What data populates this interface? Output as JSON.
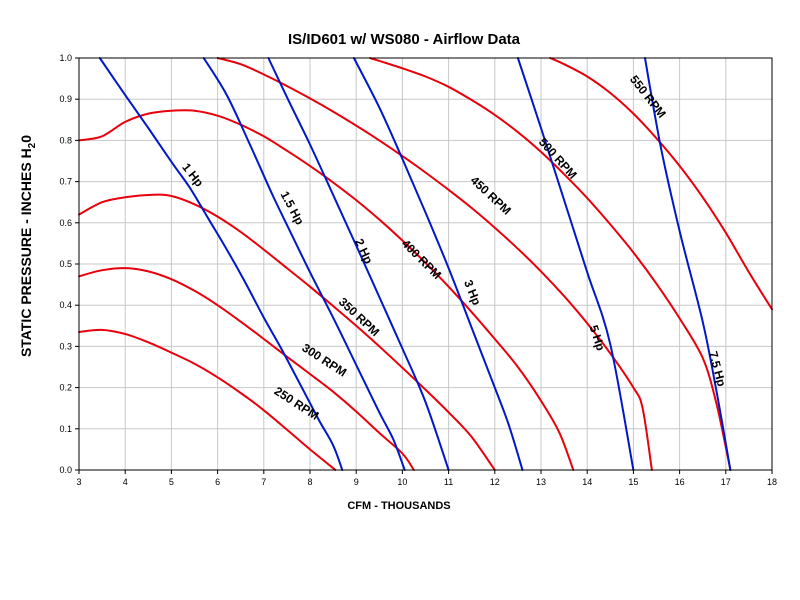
{
  "chart_data": {
    "type": "line",
    "title": "IS/ID601 w/ WS080 - Airflow Data",
    "xlabel": "CFM - THOUSANDS",
    "ylabel": "STATIC PRESSURE - INCHES H",
    "ylabel_sub": "2",
    "ylabel_end": "0",
    "xlim": [
      3,
      18
    ],
    "ylim": [
      0,
      1.0
    ],
    "x_ticks": [
      "3",
      "4",
      "5",
      "6",
      "7",
      "8",
      "9",
      "10",
      "11",
      "12",
      "13",
      "14",
      "15",
      "16",
      "17",
      "18"
    ],
    "y_ticks": [
      "0.0",
      "0.1",
      "0.2",
      "0.3",
      "0.4",
      "0.5",
      "0.6",
      "0.7",
      "0.8",
      "0.9",
      "1.0"
    ],
    "grid": true,
    "colors": {
      "rpm": "#e8000b",
      "hp": "#0018c8",
      "grid": "#c8c8c8",
      "axis": "#000000"
    },
    "rpm_series": [
      {
        "name": "250 RPM",
        "label_at": [
          7.7,
          0.16
        ],
        "label_angle": 33,
        "points": [
          [
            3.0,
            0.335
          ],
          [
            3.5,
            0.34
          ],
          [
            4.0,
            0.33
          ],
          [
            4.5,
            0.31
          ],
          [
            5.0,
            0.285
          ],
          [
            5.5,
            0.258
          ],
          [
            6.0,
            0.225
          ],
          [
            6.5,
            0.187
          ],
          [
            7.0,
            0.145
          ],
          [
            7.5,
            0.098
          ],
          [
            8.0,
            0.05
          ],
          [
            8.55,
            0.0
          ]
        ]
      },
      {
        "name": "300 RPM",
        "label_at": [
          8.3,
          0.265
        ],
        "label_angle": 33,
        "points": [
          [
            3.0,
            0.47
          ],
          [
            3.5,
            0.485
          ],
          [
            4.0,
            0.49
          ],
          [
            4.5,
            0.482
          ],
          [
            5.0,
            0.463
          ],
          [
            5.5,
            0.435
          ],
          [
            6.0,
            0.4
          ],
          [
            6.5,
            0.36
          ],
          [
            7.0,
            0.318
          ],
          [
            7.5,
            0.275
          ],
          [
            8.0,
            0.233
          ],
          [
            8.5,
            0.19
          ],
          [
            9.0,
            0.142
          ],
          [
            9.5,
            0.09
          ],
          [
            10.0,
            0.04
          ],
          [
            10.25,
            0.0
          ]
        ]
      },
      {
        "name": "350 RPM",
        "label_at": [
          9.05,
          0.37
        ],
        "label_angle": 43,
        "points": [
          [
            3.0,
            0.62
          ],
          [
            3.5,
            0.65
          ],
          [
            4.0,
            0.662
          ],
          [
            4.6,
            0.668
          ],
          [
            5.0,
            0.665
          ],
          [
            5.5,
            0.645
          ],
          [
            6.0,
            0.615
          ],
          [
            6.5,
            0.578
          ],
          [
            7.0,
            0.535
          ],
          [
            7.5,
            0.49
          ],
          [
            8.0,
            0.445
          ],
          [
            8.5,
            0.398
          ],
          [
            9.0,
            0.35
          ],
          [
            9.5,
            0.3
          ],
          [
            10.0,
            0.248
          ],
          [
            10.5,
            0.195
          ],
          [
            11.0,
            0.14
          ],
          [
            11.5,
            0.08
          ],
          [
            12.0,
            0.0
          ]
        ]
      },
      {
        "name": "400 RPM",
        "label_at": [
          10.4,
          0.51
        ],
        "label_angle": 45,
        "points": [
          [
            3.0,
            0.8
          ],
          [
            3.5,
            0.81
          ],
          [
            4.0,
            0.845
          ],
          [
            4.5,
            0.865
          ],
          [
            5.0,
            0.872
          ],
          [
            5.5,
            0.872
          ],
          [
            6.0,
            0.86
          ],
          [
            6.5,
            0.838
          ],
          [
            7.0,
            0.81
          ],
          [
            7.5,
            0.775
          ],
          [
            8.0,
            0.738
          ],
          [
            8.5,
            0.698
          ],
          [
            9.0,
            0.655
          ],
          [
            9.5,
            0.608
          ],
          [
            10.0,
            0.557
          ],
          [
            10.5,
            0.503
          ],
          [
            11.0,
            0.445
          ],
          [
            11.5,
            0.383
          ],
          [
            12.0,
            0.318
          ],
          [
            12.5,
            0.25
          ],
          [
            13.0,
            0.168
          ],
          [
            13.4,
            0.09
          ],
          [
            13.7,
            0.0
          ]
        ]
      },
      {
        "name": "450 RPM",
        "label_at": [
          11.9,
          0.665
        ],
        "label_angle": 43,
        "points": [
          [
            6.0,
            1.0
          ],
          [
            6.5,
            0.985
          ],
          [
            7.0,
            0.96
          ],
          [
            7.5,
            0.932
          ],
          [
            8.0,
            0.902
          ],
          [
            8.5,
            0.87
          ],
          [
            9.0,
            0.836
          ],
          [
            9.5,
            0.8
          ],
          [
            10.0,
            0.762
          ],
          [
            10.5,
            0.722
          ],
          [
            11.0,
            0.68
          ],
          [
            11.5,
            0.636
          ],
          [
            12.0,
            0.588
          ],
          [
            12.5,
            0.537
          ],
          [
            13.0,
            0.482
          ],
          [
            13.5,
            0.422
          ],
          [
            14.0,
            0.356
          ],
          [
            14.5,
            0.283
          ],
          [
            15.0,
            0.2
          ],
          [
            15.2,
            0.15
          ],
          [
            15.4,
            0.0
          ]
        ]
      },
      {
        "name": "500 RPM",
        "label_at": [
          13.35,
          0.755
        ],
        "label_angle": 48,
        "points": [
          [
            9.3,
            1.0
          ],
          [
            10.0,
            0.975
          ],
          [
            10.5,
            0.955
          ],
          [
            11.0,
            0.93
          ],
          [
            11.5,
            0.898
          ],
          [
            12.0,
            0.862
          ],
          [
            12.5,
            0.82
          ],
          [
            13.0,
            0.772
          ],
          [
            13.5,
            0.718
          ],
          [
            14.0,
            0.66
          ],
          [
            14.5,
            0.596
          ],
          [
            15.0,
            0.528
          ],
          [
            15.5,
            0.452
          ],
          [
            16.0,
            0.368
          ],
          [
            16.5,
            0.272
          ],
          [
            16.8,
            0.16
          ],
          [
            17.1,
            0.0
          ]
        ]
      },
      {
        "name": "550 RPM",
        "label_at": [
          15.3,
          0.905
        ],
        "label_angle": 52,
        "points": [
          [
            13.2,
            1.0
          ],
          [
            13.5,
            0.985
          ],
          [
            14.0,
            0.955
          ],
          [
            14.5,
            0.915
          ],
          [
            15.0,
            0.865
          ],
          [
            15.5,
            0.805
          ],
          [
            16.0,
            0.738
          ],
          [
            16.5,
            0.662
          ],
          [
            17.0,
            0.576
          ],
          [
            17.5,
            0.48
          ],
          [
            18.0,
            0.39
          ]
        ]
      }
    ],
    "hp_series": [
      {
        "name": "1 Hp",
        "label_at": [
          5.45,
          0.715
        ],
        "label_angle": 52,
        "points": [
          [
            3.45,
            1.0
          ],
          [
            4.0,
            0.91
          ],
          [
            4.5,
            0.83
          ],
          [
            5.0,
            0.748
          ],
          [
            5.4,
            0.685
          ],
          [
            5.8,
            0.61
          ],
          [
            6.2,
            0.535
          ],
          [
            6.6,
            0.455
          ],
          [
            7.0,
            0.37
          ],
          [
            7.4,
            0.29
          ],
          [
            7.8,
            0.205
          ],
          [
            8.2,
            0.12
          ],
          [
            8.5,
            0.06
          ],
          [
            8.7,
            0.0
          ]
        ]
      },
      {
        "name": "1.5 Hp",
        "label_at": [
          7.6,
          0.635
        ],
        "label_angle": 62,
        "points": [
          [
            5.7,
            1.0
          ],
          [
            6.2,
            0.91
          ],
          [
            6.7,
            0.79
          ],
          [
            7.2,
            0.665
          ],
          [
            7.6,
            0.572
          ],
          [
            8.0,
            0.48
          ],
          [
            8.5,
            0.37
          ],
          [
            9.0,
            0.255
          ],
          [
            9.5,
            0.14
          ],
          [
            9.8,
            0.075
          ],
          [
            10.05,
            0.0
          ]
        ]
      },
      {
        "name": "2 Hp",
        "label_at": [
          9.15,
          0.53
        ],
        "label_angle": 65,
        "points": [
          [
            7.1,
            1.0
          ],
          [
            7.5,
            0.905
          ],
          [
            8.0,
            0.79
          ],
          [
            8.5,
            0.668
          ],
          [
            9.0,
            0.545
          ],
          [
            9.5,
            0.42
          ],
          [
            10.0,
            0.295
          ],
          [
            10.5,
            0.165
          ],
          [
            11.0,
            0.0
          ]
        ]
      },
      {
        "name": "3 Hp",
        "label_at": [
          11.5,
          0.43
        ],
        "label_angle": 68,
        "points": [
          [
            8.95,
            1.0
          ],
          [
            9.5,
            0.88
          ],
          [
            10.0,
            0.755
          ],
          [
            10.5,
            0.625
          ],
          [
            11.0,
            0.49
          ],
          [
            11.5,
            0.345
          ],
          [
            12.0,
            0.2
          ],
          [
            12.3,
            0.11
          ],
          [
            12.6,
            0.0
          ]
        ]
      },
      {
        "name": "5 Hp",
        "label_at": [
          14.2,
          0.32
        ],
        "label_angle": 72,
        "points": [
          [
            12.5,
            1.0
          ],
          [
            13.0,
            0.83
          ],
          [
            13.5,
            0.655
          ],
          [
            14.0,
            0.48
          ],
          [
            14.5,
            0.305
          ],
          [
            15.0,
            0.0
          ]
        ]
      },
      {
        "name": "7.5 Hp",
        "label_at": [
          16.8,
          0.245
        ],
        "label_angle": 75,
        "points": [
          [
            15.25,
            1.0
          ],
          [
            15.6,
            0.78
          ],
          [
            16.0,
            0.58
          ],
          [
            16.5,
            0.36
          ],
          [
            16.8,
            0.19
          ],
          [
            17.1,
            0.0
          ]
        ]
      }
    ]
  }
}
